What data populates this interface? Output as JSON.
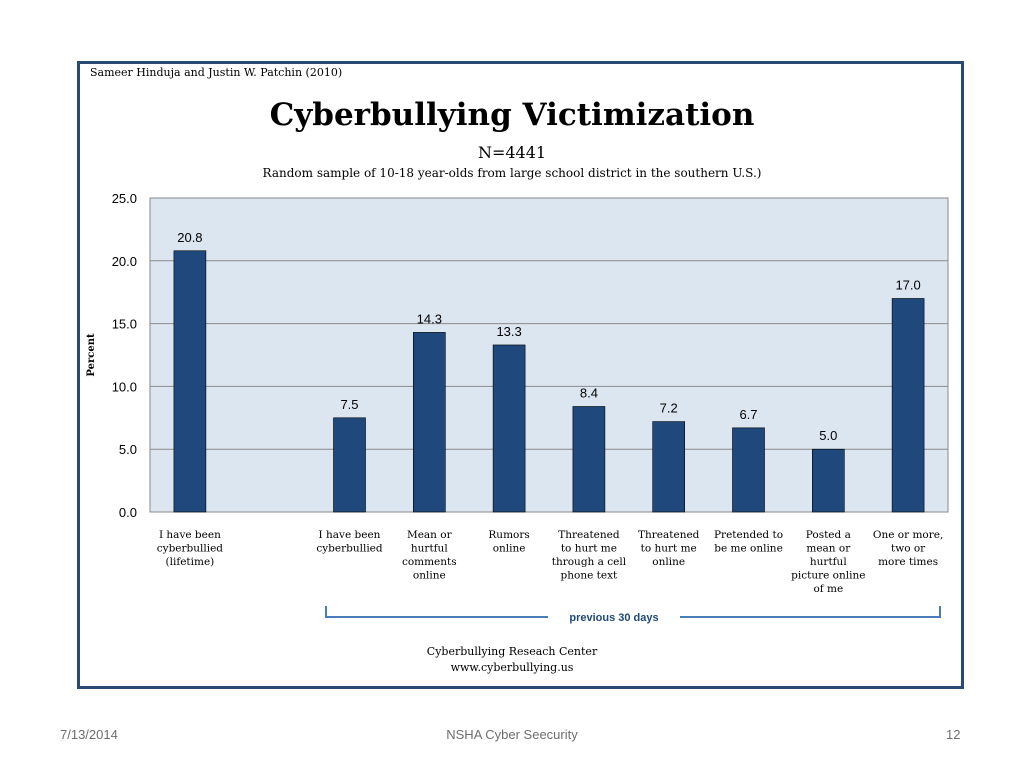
{
  "slide": {
    "credit": "Sameer Hinduja and Justin W. Patchin (2010)",
    "source_line1": "Cyberbullying Reseach Center",
    "source_line2": "www.cyberbullying.us",
    "bracket_label": "previous 30 days",
    "footer_date": "7/13/2014",
    "footer_title": "NSHA Cyber Seecurity",
    "footer_page": "12"
  },
  "colors": {
    "bar": "#1f497d",
    "plot_bg": "#dce6f1",
    "frame": "#2b4a73",
    "bracket": "#4a7ebb"
  },
  "chart_data": {
    "type": "bar",
    "title": "Cyberbullying Victimization",
    "subtitle": "N=4441",
    "subtitle2": "Random sample of 10-18 year-olds from large school district in the southern U.S.)",
    "xlabel": "",
    "ylabel": "Percent",
    "ylim": [
      0,
      25
    ],
    "yticks": [
      "0.0",
      "5.0",
      "10.0",
      "15.0",
      "20.0",
      "25.0"
    ],
    "grid": true,
    "categories": [
      [
        "I have been",
        "cyberbullied",
        "(lifetime)"
      ],
      [],
      [
        "I have been",
        "cyberbullied"
      ],
      [
        "Mean or",
        "hurtful",
        "comments",
        "online"
      ],
      [
        "Rumors",
        "online"
      ],
      [
        "Threatened",
        "to hurt me",
        "through a cell",
        "phone text"
      ],
      [
        "Threatened",
        "to hurt me",
        "online"
      ],
      [
        "Pretended to",
        "be me online"
      ],
      [
        "Posted a",
        "mean or",
        "hurtful",
        "picture online",
        "of me"
      ],
      [
        "One or more,",
        "two or",
        "more times"
      ]
    ],
    "values": [
      20.8,
      null,
      7.5,
      14.3,
      13.3,
      8.4,
      7.2,
      6.7,
      5.0,
      17.0
    ],
    "data_labels": [
      "20.8",
      "",
      "7.5",
      "14.3",
      "13.3",
      "8.4",
      "7.2",
      "6.7",
      "5.0",
      "17.0"
    ]
  }
}
